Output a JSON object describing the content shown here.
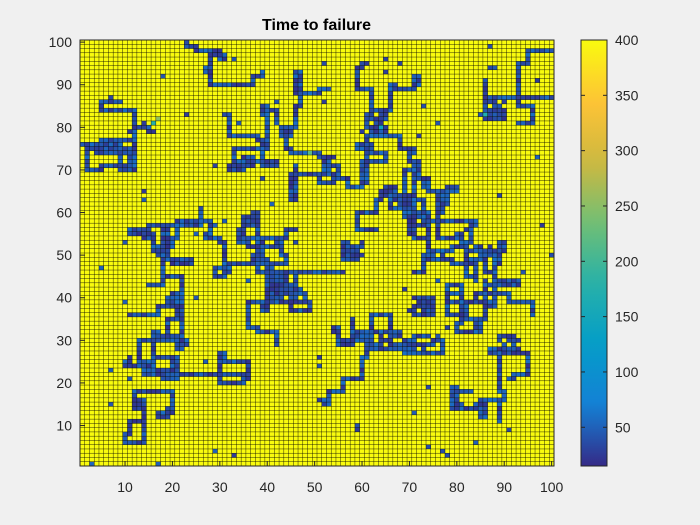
{
  "chart_data": {
    "type": "heatmap",
    "title": "Time to failure",
    "xlabel": "",
    "ylabel": "",
    "xlim": [
      1,
      100
    ],
    "ylim": [
      1,
      100
    ],
    "grid_size": [
      100,
      100
    ],
    "edge_color": "#000000",
    "x_ticks": [
      "10",
      "20",
      "30",
      "40",
      "50",
      "60",
      "70",
      "80",
      "90",
      "100"
    ],
    "y_ticks": [
      "10",
      "20",
      "30",
      "40",
      "50",
      "60",
      "70",
      "80",
      "90",
      "100"
    ],
    "colorbar": {
      "colormap": "parula",
      "range": [
        15,
        400
      ],
      "ticks": [
        "50",
        "100",
        "150",
        "200",
        "250",
        "300",
        "350",
        "400"
      ],
      "placement": "right"
    },
    "values_summary": "Most cells are at the maximum value 400 (yellow); winding chains and blobs of low-value cells (about 15-60, dark blue) form a network across the grid, with isolated mid values (~150-300) near x~15,y~80 and x~85,y~82."
  }
}
